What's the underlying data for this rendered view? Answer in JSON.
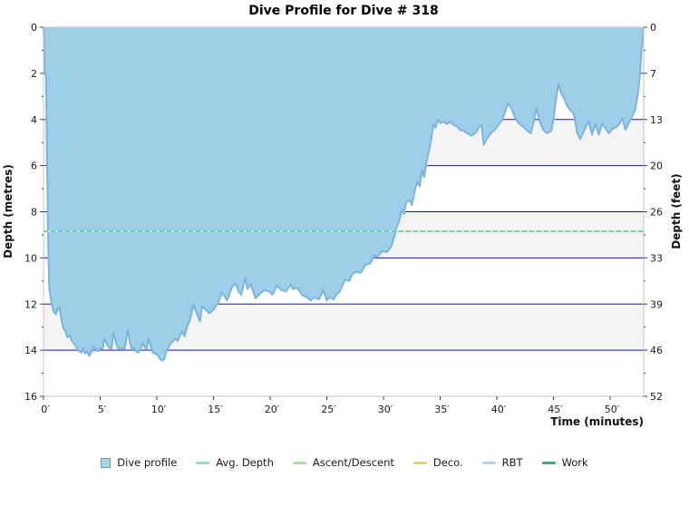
{
  "title": "Dive Profile for Dive # 318",
  "axes": {
    "x_title": "Time (minutes)",
    "y_left_title": "Depth (metres)",
    "y_right_title": "Depth (feet)",
    "x_ticks": [
      {
        "t": 0,
        "label": "0′"
      },
      {
        "t": 5,
        "label": "5′"
      },
      {
        "t": 10,
        "label": "10′"
      },
      {
        "t": 15,
        "label": "15′"
      },
      {
        "t": 20,
        "label": "20′"
      },
      {
        "t": 25,
        "label": "25′"
      },
      {
        "t": 30,
        "label": "30′"
      },
      {
        "t": 35,
        "label": "35′"
      },
      {
        "t": 40,
        "label": "40′"
      },
      {
        "t": 45,
        "label": "45′"
      },
      {
        "t": 50,
        "label": "50′"
      }
    ],
    "y_left_ticks": [
      {
        "m": 0,
        "label": "0"
      },
      {
        "m": 2,
        "label": "2"
      },
      {
        "m": 4,
        "label": "4"
      },
      {
        "m": 6,
        "label": "6"
      },
      {
        "m": 8,
        "label": "8"
      },
      {
        "m": 10,
        "label": "10"
      },
      {
        "m": 12,
        "label": "12"
      },
      {
        "m": 14,
        "label": "14"
      },
      {
        "m": 16,
        "label": "16"
      }
    ],
    "y_right_ticks": [
      {
        "m": 0,
        "label": "0"
      },
      {
        "m": 2,
        "label": "7"
      },
      {
        "m": 4,
        "label": "13"
      },
      {
        "m": 6,
        "label": "20"
      },
      {
        "m": 8,
        "label": "26"
      },
      {
        "m": 10,
        "label": "33"
      },
      {
        "m": 12,
        "label": "39"
      },
      {
        "m": 14,
        "label": "46"
      },
      {
        "m": 16,
        "label": "52"
      }
    ],
    "minor_ticks_m": [
      1,
      3,
      5,
      7,
      9,
      11,
      13,
      15
    ]
  },
  "chart_data": {
    "type": "area",
    "title": "Dive Profile for Dive # 318",
    "xlabel": "Time (minutes)",
    "ylabel_left": "Depth (metres)",
    "ylabel_right": "Depth (feet)",
    "x_range_min": [
      0,
      52.96
    ],
    "depth_range_m": [
      0,
      16
    ],
    "y_axis_inverted": true,
    "max_depth_m": 14.45,
    "avg_depth_m": 8.85,
    "gridlines_m": [
      2,
      4,
      6,
      8,
      10,
      12,
      14
    ],
    "band_stripes_m": [
      [
        0,
        2
      ],
      [
        4,
        6
      ],
      [
        8,
        10
      ],
      [
        12,
        14
      ]
    ],
    "series": [
      {
        "name": "Dive profile",
        "points": [
          [
            0,
            0
          ],
          [
            0.07,
            1
          ],
          [
            0.12,
            2
          ],
          [
            0.22,
            2.15
          ],
          [
            0.32,
            6
          ],
          [
            0.42,
            9.5
          ],
          [
            0.5,
            11.3
          ],
          [
            0.7,
            11.95
          ],
          [
            0.9,
            12.35
          ],
          [
            1.1,
            12.45
          ],
          [
            1.25,
            12.2
          ],
          [
            1.4,
            12.15
          ],
          [
            1.55,
            12.6
          ],
          [
            1.75,
            13.05
          ],
          [
            1.95,
            13.2
          ],
          [
            2.1,
            13.45
          ],
          [
            2.3,
            13.35
          ],
          [
            2.5,
            13.6
          ],
          [
            2.75,
            13.75
          ],
          [
            2.95,
            13.9
          ],
          [
            3.15,
            14.05
          ],
          [
            3.35,
            14.1
          ],
          [
            3.5,
            13.9
          ],
          [
            3.65,
            14.15
          ],
          [
            3.85,
            14.05
          ],
          [
            4.05,
            14.25
          ],
          [
            4.2,
            14.1
          ],
          [
            4.4,
            13.85
          ],
          [
            4.6,
            13.95
          ],
          [
            4.8,
            14.05
          ],
          [
            5,
            13.9
          ],
          [
            5.2,
            13.95
          ],
          [
            5.4,
            13.5
          ],
          [
            5.6,
            13.75
          ],
          [
            5.8,
            13.9
          ],
          [
            6,
            13.95
          ],
          [
            6.15,
            13.25
          ],
          [
            6.35,
            13.6
          ],
          [
            6.55,
            13.9
          ],
          [
            6.75,
            13.95
          ],
          [
            6.95,
            13.9
          ],
          [
            7.15,
            13.95
          ],
          [
            7.3,
            13.5
          ],
          [
            7.45,
            13.1
          ],
          [
            7.6,
            13.6
          ],
          [
            7.8,
            14
          ],
          [
            8,
            13.9
          ],
          [
            8.15,
            14.05
          ],
          [
            8.35,
            14.1
          ],
          [
            8.55,
            13.95
          ],
          [
            8.75,
            13.7
          ],
          [
            8.95,
            13.9
          ],
          [
            9.1,
            13.95
          ],
          [
            9.25,
            13.5
          ],
          [
            9.45,
            13.8
          ],
          [
            9.65,
            14.1
          ],
          [
            9.85,
            14.15
          ],
          [
            10.05,
            14.2
          ],
          [
            10.25,
            14.35
          ],
          [
            10.45,
            14.45
          ],
          [
            10.65,
            14.4
          ],
          [
            10.85,
            14.05
          ],
          [
            11.05,
            13.85
          ],
          [
            11.25,
            13.7
          ],
          [
            11.45,
            13.6
          ],
          [
            11.65,
            13.5
          ],
          [
            11.85,
            13.6
          ],
          [
            12.05,
            13.35
          ],
          [
            12.25,
            13.2
          ],
          [
            12.45,
            13.4
          ],
          [
            12.65,
            13
          ],
          [
            12.85,
            12.8
          ],
          [
            13.05,
            12.45
          ],
          [
            13.2,
            12
          ],
          [
            13.4,
            12.25
          ],
          [
            13.6,
            12.5
          ],
          [
            13.8,
            12.75
          ],
          [
            14,
            12.1
          ],
          [
            14.25,
            12.2
          ],
          [
            14.6,
            12.4
          ],
          [
            15,
            12.25
          ],
          [
            15.4,
            11.95
          ],
          [
            15.75,
            11.5
          ],
          [
            16.2,
            11.85
          ],
          [
            16.6,
            11.3
          ],
          [
            16.95,
            11.1
          ],
          [
            17.2,
            11.45
          ],
          [
            17.45,
            11.6
          ],
          [
            17.8,
            10.85
          ],
          [
            18,
            11.35
          ],
          [
            18.3,
            11.15
          ],
          [
            18.7,
            11.75
          ],
          [
            19.1,
            11.55
          ],
          [
            19.5,
            11.4
          ],
          [
            19.9,
            11.45
          ],
          [
            20.2,
            11.6
          ],
          [
            20.6,
            11.2
          ],
          [
            21,
            11.4
          ],
          [
            21.4,
            11.45
          ],
          [
            21.8,
            11.15
          ],
          [
            22,
            11.35
          ],
          [
            22.4,
            11.3
          ],
          [
            22.8,
            11.6
          ],
          [
            23.2,
            11.7
          ],
          [
            23.6,
            11.85
          ],
          [
            23.9,
            11.7
          ],
          [
            24.3,
            11.8
          ],
          [
            24.7,
            11.4
          ],
          [
            25,
            11.85
          ],
          [
            25.2,
            11.7
          ],
          [
            25.6,
            11.8
          ],
          [
            25.9,
            11.55
          ],
          [
            26.1,
            11.5
          ],
          [
            26.6,
            10.95
          ],
          [
            27,
            11
          ],
          [
            27.25,
            10.7
          ],
          [
            27.6,
            10.6
          ],
          [
            28,
            10.65
          ],
          [
            28.4,
            10.3
          ],
          [
            28.8,
            10.25
          ],
          [
            29.2,
            9.9
          ],
          [
            29.45,
            9.95
          ],
          [
            29.9,
            9.7
          ],
          [
            30.3,
            9.75
          ],
          [
            30.7,
            9.5
          ],
          [
            31,
            9
          ],
          [
            31.2,
            8.6
          ],
          [
            31.4,
            8.4
          ],
          [
            31.6,
            7.9
          ],
          [
            31.8,
            8.1
          ],
          [
            32,
            7.6
          ],
          [
            32.3,
            7.5
          ],
          [
            32.5,
            7.7
          ],
          [
            32.8,
            7
          ],
          [
            33,
            6.7
          ],
          [
            33.2,
            6.9
          ],
          [
            33.4,
            6.2
          ],
          [
            33.6,
            6.5
          ],
          [
            33.8,
            5.8
          ],
          [
            34,
            5.4
          ],
          [
            34.2,
            4.9
          ],
          [
            34.4,
            4.2
          ],
          [
            34.6,
            4.35
          ],
          [
            34.8,
            4
          ],
          [
            35,
            4.15
          ],
          [
            35.3,
            4.1
          ],
          [
            35.6,
            4.2
          ],
          [
            35.9,
            4.1
          ],
          [
            36.2,
            4.25
          ],
          [
            36.5,
            4.3
          ],
          [
            36.75,
            4.45
          ],
          [
            37.1,
            4.5
          ],
          [
            37.4,
            4.6
          ],
          [
            37.8,
            4.7
          ],
          [
            38.2,
            4.55
          ],
          [
            38.45,
            4.3
          ],
          [
            38.65,
            4.25
          ],
          [
            38.85,
            5.1
          ],
          [
            39.05,
            4.9
          ],
          [
            39.3,
            4.7
          ],
          [
            39.6,
            4.55
          ],
          [
            39.9,
            4.4
          ],
          [
            40.2,
            4.2
          ],
          [
            40.45,
            4.05
          ],
          [
            40.7,
            3.7
          ],
          [
            41,
            3.3
          ],
          [
            41.3,
            3.55
          ],
          [
            41.6,
            3.9
          ],
          [
            41.9,
            4.15
          ],
          [
            42.3,
            4.3
          ],
          [
            42.6,
            4.45
          ],
          [
            43,
            4.6
          ],
          [
            43.3,
            4
          ],
          [
            43.5,
            3.5
          ],
          [
            43.8,
            4.1
          ],
          [
            44.1,
            4.45
          ],
          [
            44.4,
            4.6
          ],
          [
            44.8,
            4.5
          ],
          [
            45,
            4
          ],
          [
            45.2,
            3.2
          ],
          [
            45.45,
            2.45
          ],
          [
            45.7,
            2.9
          ],
          [
            45.95,
            3.1
          ],
          [
            46.2,
            3.4
          ],
          [
            46.5,
            3.6
          ],
          [
            46.8,
            3.75
          ],
          [
            47.1,
            4.6
          ],
          [
            47.35,
            4.85
          ],
          [
            47.6,
            4.6
          ],
          [
            47.9,
            4.25
          ],
          [
            48.1,
            4.1
          ],
          [
            48.4,
            4.65
          ],
          [
            48.7,
            4.2
          ],
          [
            49,
            4.65
          ],
          [
            49.3,
            4.15
          ],
          [
            49.6,
            4.4
          ],
          [
            49.9,
            4.6
          ],
          [
            50.2,
            4.4
          ],
          [
            50.5,
            4.35
          ],
          [
            50.8,
            4.2
          ],
          [
            51.1,
            3.95
          ],
          [
            51.35,
            4.45
          ],
          [
            51.6,
            4.2
          ],
          [
            51.9,
            3.9
          ],
          [
            52.2,
            3.6
          ],
          [
            52.45,
            2.9
          ],
          [
            52.6,
            2.2
          ],
          [
            52.75,
            1.1
          ],
          [
            52.9,
            0.35
          ],
          [
            52.96,
            0
          ]
        ]
      },
      {
        "name": "Avg. Depth",
        "value_m": 8.85
      }
    ]
  },
  "legend": {
    "items": [
      {
        "label": "Dive profile",
        "swatch": "square",
        "color": "#a8d4e8",
        "border": "#6b9ab3"
      },
      {
        "label": "Avg. Depth",
        "swatch": "line",
        "color": "#8fe0b8"
      },
      {
        "label": "Ascent/Descent",
        "swatch": "line",
        "color": "#a5e49d"
      },
      {
        "label": "Deco.",
        "swatch": "line",
        "color": "#d9dc6a"
      },
      {
        "label": "RBT",
        "swatch": "line",
        "color": "#a9d9f0"
      },
      {
        "label": "Work",
        "swatch": "line",
        "color": "#36a98c"
      }
    ]
  },
  "colors": {
    "profile_fill": "#9dcfe9",
    "profile_stroke": "#7cb4dc",
    "gridline": "#1414cc",
    "stripe": "#f4f4f4",
    "plot_border": "#c4c4c4",
    "avg_dash": "#66d697",
    "avg_base": "#bfeed5",
    "tick": "#444444",
    "tick_label": "#1a1a1a"
  }
}
